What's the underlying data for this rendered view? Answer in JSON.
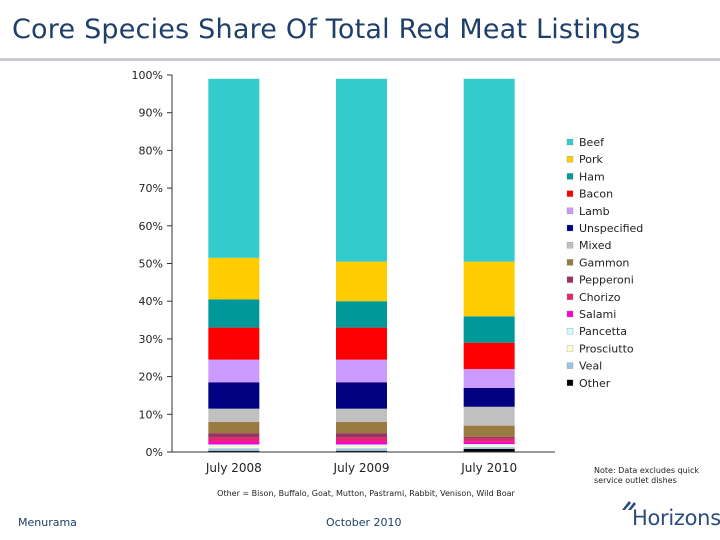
{
  "title": "Core Species Share Of Total Red Meat Listings",
  "note": "Note: Data excludes quick service outlet dishes",
  "footnote": "Other = Bison, Buffalo, Goat, Mutton, Pastrami, Rabbit, Venison, Wild Boar",
  "footer": {
    "source": "Menurama",
    "date": "October 2010",
    "logo": "Horizons"
  },
  "chart_data": {
    "type": "bar",
    "stacked": true,
    "categories": [
      "July 2008",
      "July 2009",
      "July 2010"
    ],
    "ylim": [
      0,
      100
    ],
    "yticks": [
      "0%",
      "10%",
      "20%",
      "30%",
      "40%",
      "50%",
      "60%",
      "70%",
      "80%",
      "90%",
      "100%"
    ],
    "legend_position": "right",
    "series": [
      {
        "name": "Other",
        "color": "#000000",
        "values": [
          0.3,
          0.3,
          0.8
        ]
      },
      {
        "name": "Veal",
        "color": "#9dc3e6",
        "values": [
          0.7,
          0.7,
          0.5
        ]
      },
      {
        "name": "Prosciutto",
        "color": "#ffffcc",
        "values": [
          0.5,
          0.5,
          0.4
        ]
      },
      {
        "name": "Pancetta",
        "color": "#ccffff",
        "values": [
          0.5,
          0.5,
          0.4
        ]
      },
      {
        "name": "Salami",
        "color": "#ff00cc",
        "values": [
          0.8,
          0.8,
          0.6
        ]
      },
      {
        "name": "Chorizo",
        "color": "#e8246e",
        "values": [
          1.0,
          1.0,
          0.8
        ]
      },
      {
        "name": "Pepperoni",
        "color": "#993366",
        "values": [
          1.2,
          1.2,
          0.5
        ]
      },
      {
        "name": "Gammon",
        "color": "#997a40",
        "values": [
          3.0,
          3.0,
          3.0
        ]
      },
      {
        "name": "Mixed",
        "color": "#c0c0c0",
        "values": [
          3.5,
          3.5,
          5.0
        ]
      },
      {
        "name": "Unspecified",
        "color": "#000080",
        "values": [
          7.0,
          7.0,
          5.0
        ]
      },
      {
        "name": "Lamb",
        "color": "#cc99ff",
        "values": [
          6.0,
          6.0,
          5.0
        ]
      },
      {
        "name": "Bacon",
        "color": "#ff0000",
        "values": [
          8.5,
          8.5,
          7.0
        ]
      },
      {
        "name": "Ham",
        "color": "#009999",
        "values": [
          7.5,
          7.0,
          7.0
        ]
      },
      {
        "name": "Pork",
        "color": "#ffcc00",
        "values": [
          11.0,
          10.5,
          14.5
        ]
      },
      {
        "name": "Beef",
        "color": "#33cccc",
        "values": [
          47.5,
          48.5,
          48.5
        ]
      }
    ]
  }
}
